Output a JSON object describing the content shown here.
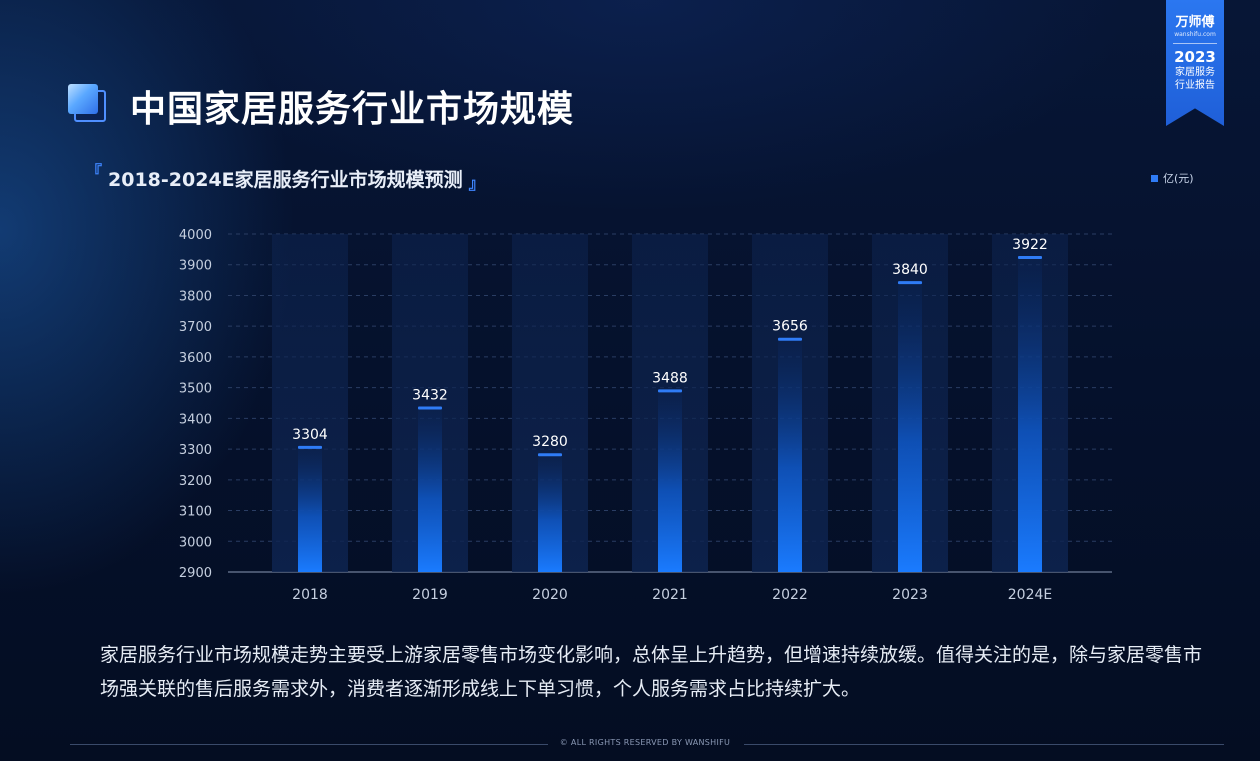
{
  "header": {
    "title": "中国家居服务行业市场规模"
  },
  "badge": {
    "brand": "万师傅",
    "domain": "wanshifu.com",
    "year": "2023",
    "subtitle_line1": "家居服务",
    "subtitle_line2": "行业报告",
    "color": "#2b77f0"
  },
  "chart_header": {
    "bracket_open": "『",
    "title": "2018-2024E家居服务行业市场规模预测",
    "bracket_close": "』",
    "legend_label": "亿(元)"
  },
  "chart_data": {
    "type": "bar",
    "title": "2018-2024E家居服务行业市场规模预测",
    "categories": [
      "2018",
      "2019",
      "2020",
      "2021",
      "2022",
      "2023",
      "2024E"
    ],
    "values": [
      3304,
      3432,
      3280,
      3488,
      3656,
      3840,
      3922
    ],
    "series": [
      {
        "name": "亿(元)",
        "values": [
          3304,
          3432,
          3280,
          3488,
          3656,
          3840,
          3922
        ]
      }
    ],
    "xlabel": "",
    "ylabel": "",
    "ylim": [
      2900,
      4000
    ],
    "yticks": [
      2900,
      3000,
      3100,
      3200,
      3300,
      3400,
      3500,
      3600,
      3700,
      3800,
      3900,
      4000
    ],
    "grid": true,
    "legend_position": "top-right",
    "colors": {
      "bar": "#1a7bff",
      "bar_cap": "#2f7cf6",
      "column_bg": "#0e2450"
    }
  },
  "description": "家居服务行业市场规模走势主要受上游家居零售市场变化影响，总体呈上升趋势，但增速持续放缓。值得关注的是，除与家居零售市场强关联的售后服务需求外，消费者逐渐形成线上下单习惯，个人服务需求占比持续扩大。",
  "footer": {
    "text": "© ALL RIGHTS RESERVED BY WANSHIFU"
  }
}
